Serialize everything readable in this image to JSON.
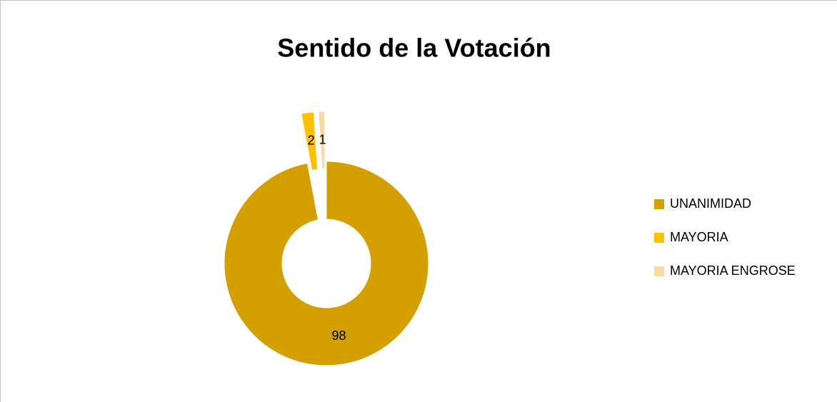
{
  "chart_data": {
    "type": "donut",
    "title": "Sentido de la Votación",
    "categories": [
      "UNANIMIDAD",
      "MAYORIA",
      "MAYORIA ENGROSE"
    ],
    "values": [
      98,
      2,
      1
    ],
    "colors": [
      "#D4A000",
      "#FFC000",
      "#FBD9A3"
    ],
    "legend": "right"
  }
}
